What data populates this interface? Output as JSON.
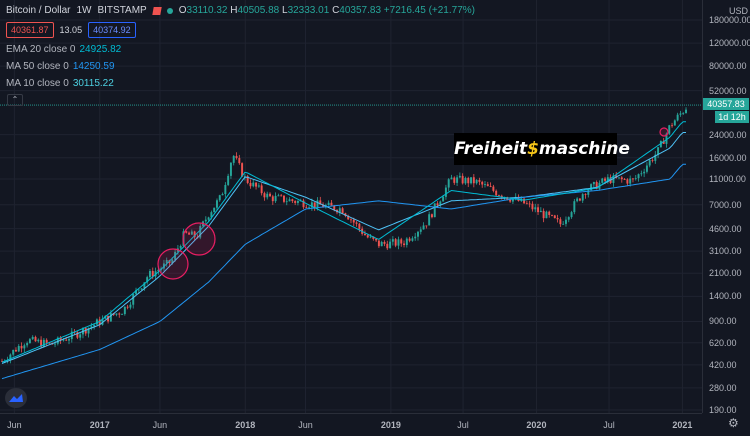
{
  "header": {
    "symbol": "Bitcoin / Dollar",
    "interval": "1W",
    "exchange": "BITSTAMP",
    "ohlc": [
      {
        "k": "O",
        "v": "33110.32"
      },
      {
        "k": "H",
        "v": "40505.88"
      },
      {
        "k": "L",
        "v": "32333.01"
      },
      {
        "k": "C",
        "v": "40357.83"
      }
    ],
    "change": "+7216.45 (+21.77%)",
    "sell_price": "40361.87",
    "spread": "13.05",
    "buy_price": "40374.92"
  },
  "indicators": [
    {
      "label": "EMA 20 close 0",
      "value": "24925.82",
      "color": "#00bcd4"
    },
    {
      "label": "MA 50 close 0",
      "value": "14250.59",
      "color": "#2196f3"
    },
    {
      "label": "MA 10 close 0",
      "value": "30115.22",
      "color": "#4dd0e1"
    }
  ],
  "collapse_icon": "chevron-up-icon",
  "currency": "USD",
  "current_price": "40357.83",
  "countdown": "1d 12h",
  "watermark": {
    "part1": "Freiheit",
    "dollar": "$",
    "part2": "maschine"
  },
  "price_axis": [
    "180000.00",
    "120000.00",
    "80000.00",
    "52000.00",
    "24000.00",
    "16000.00",
    "11000.00",
    "7000.00",
    "4600.00",
    "3100.00",
    "2100.00",
    "1400.00",
    "900.00",
    "620.00",
    "420.00",
    "280.00",
    "190.00"
  ],
  "time_axis": [
    "Jun",
    "2017",
    "Jun",
    "2018",
    "Jun",
    "2019",
    "Jul",
    "2020",
    "Jul",
    "2021"
  ],
  "colors": {
    "up": "#26a69a",
    "down": "#ef5350",
    "background": "#131722",
    "grid": "#1f2330"
  },
  "chart_data": {
    "type": "candlestick",
    "series": [
      {
        "name": "BTCUSD",
        "x": [
          "2016-05",
          "2016-07",
          "2016-09",
          "2016-11",
          "2017-01",
          "2017-03",
          "2017-05",
          "2017-07",
          "2017-08",
          "2017-09",
          "2017-10",
          "2017-11",
          "2017-12",
          "2018-01",
          "2018-03",
          "2018-05",
          "2018-07",
          "2018-09",
          "2018-11",
          "2018-12",
          "2019-02",
          "2019-04",
          "2019-06",
          "2019-08",
          "2019-10",
          "2019-12",
          "2020-03",
          "2020-05",
          "2020-07",
          "2020-09",
          "2020-11",
          "2020-12",
          "2021-01"
        ],
        "y": [
          450,
          650,
          600,
          720,
          900,
          1100,
          2000,
          2600,
          4200,
          4000,
          6000,
          8000,
          17000,
          11000,
          8000,
          7500,
          7000,
          6500,
          4000,
          3500,
          3600,
          5200,
          11000,
          10500,
          8500,
          7200,
          5000,
          9000,
          11000,
          10700,
          18000,
          28000,
          40357.83
        ]
      },
      {
        "name": "EMA 20 close 0",
        "x": [
          "2016-05",
          "2017-01",
          "2017-06",
          "2017-10",
          "2018-01",
          "2018-06",
          "2018-12",
          "2019-06",
          "2019-12",
          "2020-06",
          "2020-12",
          "2021-01"
        ],
        "y": [
          430,
          850,
          2000,
          4800,
          11500,
          8000,
          4500,
          7500,
          8000,
          9500,
          19000,
          24925.82
        ]
      },
      {
        "name": "MA 50 close 0",
        "x": [
          "2016-05",
          "2017-01",
          "2017-06",
          "2017-10",
          "2018-01",
          "2018-06",
          "2018-12",
          "2019-06",
          "2019-12",
          "2020-06",
          "2020-12",
          "2021-01"
        ],
        "y": [
          330,
          550,
          900,
          1800,
          3500,
          6500,
          7500,
          6500,
          8000,
          9000,
          11000,
          14250.59
        ]
      },
      {
        "name": "MA 10 close 0",
        "x": [
          "2016-05",
          "2017-01",
          "2017-06",
          "2017-10",
          "2018-01",
          "2018-06",
          "2018-12",
          "2019-06",
          "2019-12",
          "2020-06",
          "2020-12",
          "2021-01"
        ],
        "y": [
          440,
          900,
          2200,
          5200,
          12500,
          7200,
          3800,
          9000,
          7600,
          9400,
          23000,
          30115.22
        ]
      }
    ],
    "y_scale": "log",
    "ylim": [
      190,
      180000
    ]
  }
}
